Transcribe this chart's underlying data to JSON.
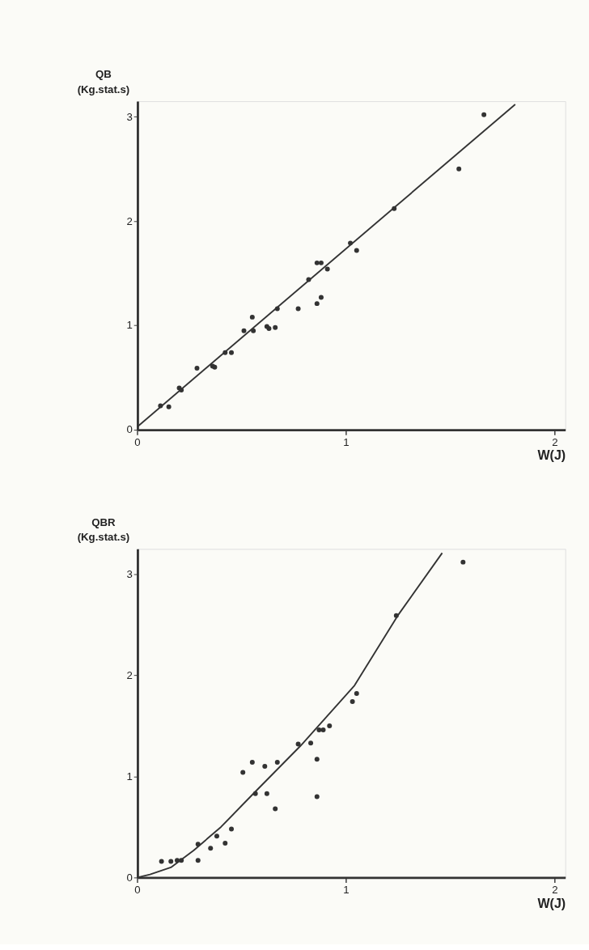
{
  "chart_data": [
    {
      "type": "scatter",
      "ylabel": "QB (Kg.stat.s)",
      "xlabel": "W(J)",
      "xlim": [
        0,
        2.05
      ],
      "ylim": [
        0,
        3.15
      ],
      "xticks": [
        0,
        1,
        2
      ],
      "yticks": [
        0,
        1,
        2,
        3
      ],
      "grid": false,
      "series": [
        {
          "type": "scatter",
          "marker": "circle",
          "color": "#333333",
          "x": [
            0.11,
            0.15,
            0.2,
            0.21,
            0.285,
            0.36,
            0.37,
            0.42,
            0.45,
            0.51,
            0.55,
            0.555,
            0.62,
            0.63,
            0.66,
            0.67,
            0.77,
            0.82,
            0.86,
            0.88,
            0.86,
            0.88,
            0.91,
            1.02,
            1.05,
            1.23,
            1.54,
            1.66
          ],
          "values": [
            0.23,
            0.22,
            0.4,
            0.38,
            0.59,
            0.61,
            0.6,
            0.74,
            0.74,
            0.95,
            1.08,
            0.95,
            0.99,
            0.97,
            0.98,
            1.16,
            1.16,
            1.44,
            1.21,
            1.27,
            1.6,
            1.6,
            1.54,
            1.79,
            1.72,
            2.12,
            2.5,
            3.02
          ]
        },
        {
          "type": "line",
          "marker": "none",
          "color": "#333333",
          "x": [
            0,
            1.81
          ],
          "values": [
            0.03,
            3.12
          ]
        }
      ]
    },
    {
      "type": "scatter",
      "ylabel": "QBR (Kg.stat.s)",
      "xlabel": "W(J)",
      "xlim": [
        0,
        2.05
      ],
      "ylim": [
        0,
        3.25
      ],
      "xticks": [
        0,
        1,
        2
      ],
      "yticks": [
        0,
        1,
        2,
        3
      ],
      "grid": false,
      "series": [
        {
          "type": "scatter",
          "marker": "circle",
          "color": "#333333",
          "x": [
            0.115,
            0.16,
            0.19,
            0.21,
            0.29,
            0.29,
            0.35,
            0.38,
            0.42,
            0.45,
            0.505,
            0.55,
            0.565,
            0.61,
            0.62,
            0.66,
            0.67,
            0.77,
            0.83,
            0.86,
            0.86,
            0.87,
            0.89,
            0.92,
            1.03,
            1.05,
            1.24,
            1.56
          ],
          "values": [
            0.16,
            0.16,
            0.17,
            0.17,
            0.33,
            0.17,
            0.29,
            0.41,
            0.34,
            0.48,
            1.04,
            1.14,
            0.83,
            1.1,
            0.83,
            0.68,
            1.14,
            1.32,
            1.33,
            1.17,
            0.8,
            1.46,
            1.46,
            1.5,
            1.74,
            1.82,
            2.59,
            3.12
          ]
        },
        {
          "type": "line",
          "marker": "none",
          "color": "#333333",
          "x": [
            0,
            0.06,
            0.16,
            0.27,
            0.4,
            0.56,
            0.78,
            1.04,
            1.25,
            1.46
          ],
          "values": [
            0,
            0.03,
            0.1,
            0.27,
            0.5,
            0.84,
            1.3,
            1.9,
            2.6,
            3.21
          ]
        }
      ]
    }
  ]
}
